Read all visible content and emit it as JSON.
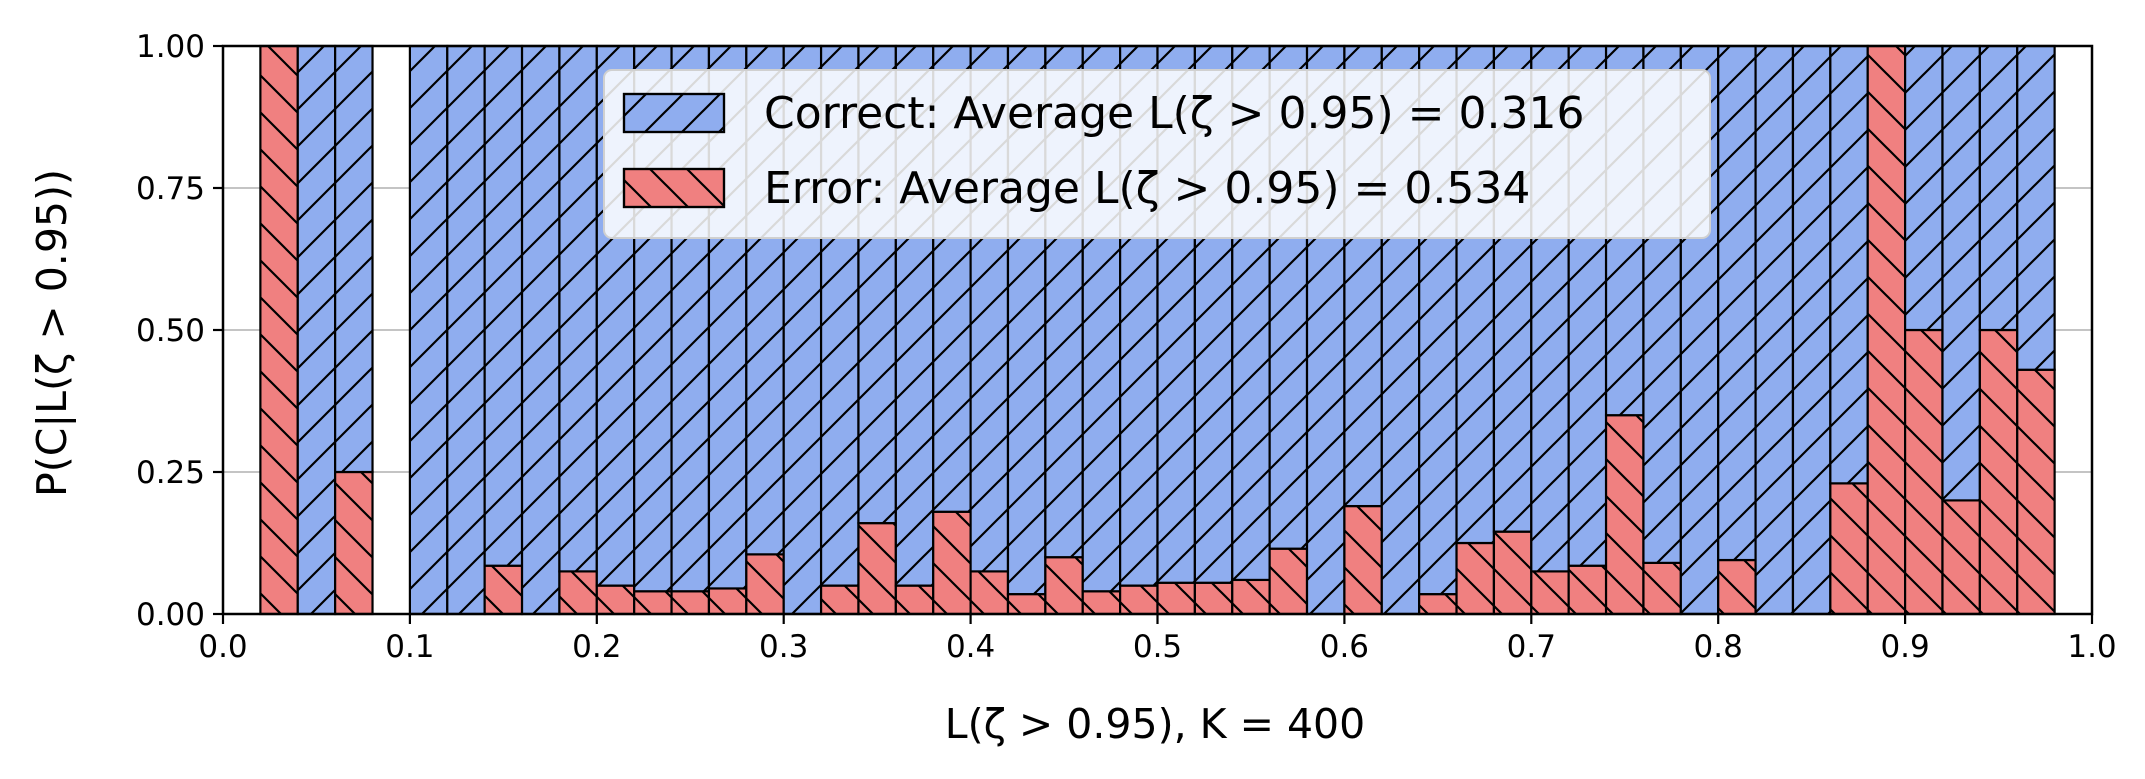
{
  "chart_data": {
    "type": "bar",
    "stacked": true,
    "xlabel": "L(ζ > 0.95), K = 400",
    "ylabel": "P(C|L(ζ > 0.95))",
    "xlim": [
      0.0,
      1.0
    ],
    "ylim": [
      0.0,
      1.0
    ],
    "grid": true,
    "legend_position": "top-center",
    "x_ticks": [
      "0.0",
      "0.1",
      "0.2",
      "0.3",
      "0.4",
      "0.5",
      "0.6",
      "0.7",
      "0.8",
      "0.9",
      "1.0"
    ],
    "y_ticks": [
      "0.00",
      "0.25",
      "0.50",
      "0.75",
      "1.00"
    ],
    "bin_edges": [
      0.0,
      0.02,
      0.04,
      0.06,
      0.08,
      0.1,
      0.12,
      0.14,
      0.16,
      0.18,
      0.2,
      0.22,
      0.24,
      0.26,
      0.28,
      0.3,
      0.32,
      0.34,
      0.36,
      0.38,
      0.4,
      0.42,
      0.44,
      0.46,
      0.48,
      0.5,
      0.52,
      0.54,
      0.56,
      0.58,
      0.6,
      0.62,
      0.64,
      0.66,
      0.68,
      0.7,
      0.72,
      0.74,
      0.76,
      0.78,
      0.8,
      0.82,
      0.84,
      0.86,
      0.88,
      0.9,
      0.92,
      0.94,
      0.96,
      0.98,
      1.0
    ],
    "series": [
      {
        "name": "Error",
        "legend": "Error: Average L(ζ > 0.95) = 0.534",
        "color": "#f08080",
        "hatch": "backslash",
        "values": [
          0,
          1.0,
          0,
          0.25,
          0,
          0,
          0,
          0.085,
          0,
          0.075,
          0.05,
          0.04,
          0.04,
          0.045,
          0.105,
          0,
          0.05,
          0.16,
          0.05,
          0.18,
          0.075,
          0.035,
          0.1,
          0.04,
          0.05,
          0.055,
          0.055,
          0.06,
          0.115,
          0,
          0.19,
          0,
          0.035,
          0.125,
          0.145,
          0.075,
          0.085,
          0.35,
          0.09,
          0,
          0.095,
          0,
          0,
          0.23,
          1.0,
          0.5,
          0.2,
          0.5,
          0.43,
          0
        ]
      },
      {
        "name": "Correct",
        "legend": "Correct: Average L(ζ > 0.95) = 0.316",
        "color": "#8fadef",
        "hatch": "slash",
        "values": [
          0,
          0,
          1.0,
          0.75,
          0,
          1.0,
          1.0,
          0.915,
          1.0,
          0.925,
          0.95,
          0.96,
          0.96,
          0.955,
          0.895,
          1.0,
          0.95,
          0.84,
          0.95,
          0.82,
          0.925,
          0.965,
          0.9,
          0.96,
          0.95,
          0.945,
          0.945,
          0.94,
          0.885,
          1.0,
          0.81,
          1.0,
          0.965,
          0.875,
          0.855,
          0.925,
          0.915,
          0.65,
          0.91,
          1.0,
          0.905,
          1.0,
          1.0,
          0.77,
          0,
          0.5,
          0.8,
          0.5,
          0.57,
          0
        ]
      }
    ]
  }
}
